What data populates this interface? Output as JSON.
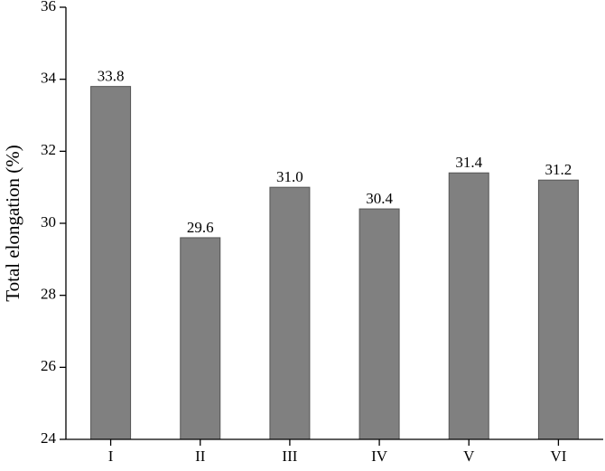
{
  "chart_data": {
    "type": "bar",
    "y_label": "Total elongation (%)",
    "categories": [
      "I",
      "II",
      "III",
      "IV",
      "V",
      "VI"
    ],
    "values": [
      33.8,
      29.6,
      31.0,
      30.4,
      31.4,
      31.2
    ],
    "value_labels": [
      "33.8",
      "29.6",
      "31.0",
      "30.4",
      "31.4",
      "31.2"
    ],
    "color": "#808080",
    "ylim": [
      24,
      36
    ],
    "yticks": [
      24,
      26,
      28,
      30,
      32,
      34,
      36
    ],
    "grid": false
  }
}
